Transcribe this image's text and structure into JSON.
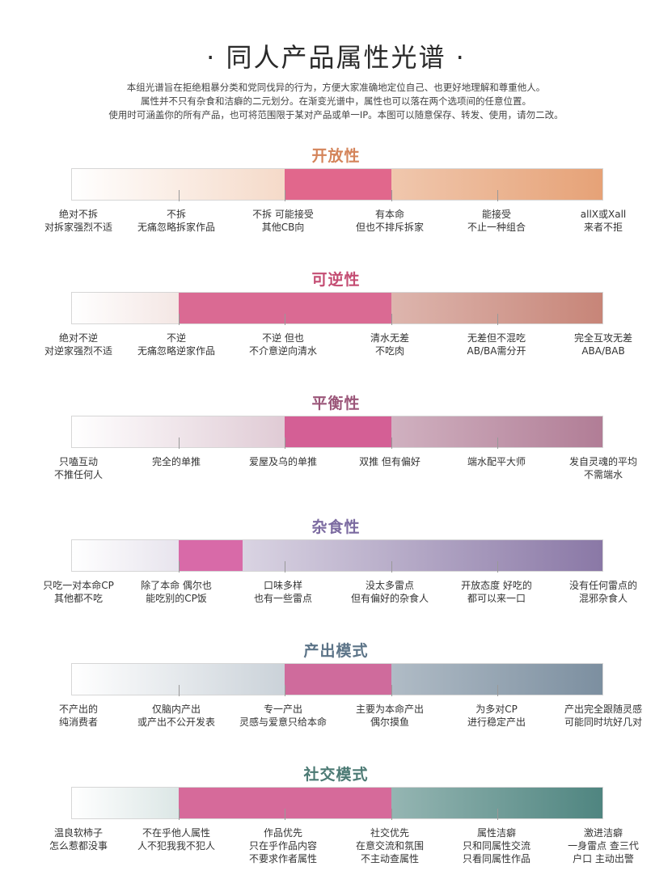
{
  "title": "· 同人产品属性光谱 ·",
  "intro": [
    "本组光谱旨在拒绝粗暴分类和党同伐异的行为，方便大家准确地定位自己、也更好地理解和尊重他人。",
    "属性并不只有杂食和洁癖的二元划分。在渐变光谱中，属性也可以落在两个选项间的任意位置。",
    "使用时可涵盖你的所有产品，也可将范围限于某对产品或单一IP。本图可以随意保存、转发、使用，请勿二改。"
  ],
  "sections": [
    {
      "title": "开放性",
      "color": "#d4845a",
      "gradient_start": "#ffffff",
      "gradient_end": "#e6a277",
      "highlight_color": "#e1678c",
      "highlight_range": [
        2,
        3
      ],
      "labels": [
        [
          "绝对不拆",
          "对拆家强烈不适"
        ],
        [
          "不拆",
          "无痛忽略拆家作品"
        ],
        [
          "不拆 可能接受",
          "其他CB向"
        ],
        [
          "有本命",
          "但也不排斥拆家"
        ],
        [
          "能接受",
          "不止一种组合"
        ],
        [
          "allX或Xall",
          "来者不拒"
        ]
      ]
    },
    {
      "title": "可逆性",
      "color": "#c44d73",
      "gradient_start": "#ffffff",
      "gradient_end": "#c78578",
      "highlight_color": "#da6a93",
      "highlight_range": [
        1,
        3
      ],
      "labels": [
        [
          "绝对不逆",
          "对逆家强烈不适"
        ],
        [
          "不逆",
          "无痛忽略逆家作品"
        ],
        [
          "不逆 但也",
          "不介意逆向清水"
        ],
        [
          "清水无差",
          "不吃肉"
        ],
        [
          "无差但不混吃",
          "AB/BA需分开"
        ],
        [
          "完全互攻无差",
          "ABA/BAB"
        ]
      ]
    },
    {
      "title": "平衡性",
      "color": "#9b5679",
      "gradient_start": "#ffffff",
      "gradient_end": "#b17d96",
      "highlight_color": "#d45f95",
      "highlight_range": [
        2,
        3
      ],
      "labels": [
        [
          "只嗑互动",
          "不推任何人"
        ],
        [
          "完全的单推"
        ],
        [
          "爱屋及乌的单推"
        ],
        [
          "双推 但有偏好"
        ],
        [
          "端水配平大师"
        ],
        [
          "发自灵魂的平均",
          "不需端水"
        ]
      ]
    },
    {
      "title": "杂食性",
      "color": "#7b6aa0",
      "gradient_start": "#ffffff",
      "gradient_end": "#8a78a6",
      "highlight_color": "#d86aa8",
      "highlight_range": [
        1,
        1.6
      ],
      "labels": [
        [
          "只吃一对本命CP",
          "其他都不吃"
        ],
        [
          "除了本命 偶尔也",
          "能吃别的CP饭"
        ],
        [
          "口味多样",
          "也有一些雷点"
        ],
        [
          "没太多雷点",
          "但有偏好的杂食人"
        ],
        [
          "开放态度 好吃的",
          "都可以来一口"
        ],
        [
          "没有任何雷点的",
          "混邪杂食人"
        ]
      ]
    },
    {
      "title": "产出模式",
      "color": "#5c7488",
      "gradient_start": "#ffffff",
      "gradient_end": "#7c8fa0",
      "highlight_color": "#cf6b9c",
      "highlight_range": [
        2,
        3
      ],
      "labels": [
        [
          "不产出的",
          "纯消费者"
        ],
        [
          "仅脑内产出",
          "或产出不公开发表"
        ],
        [
          "专一产出",
          "灵感与爱意只给本命"
        ],
        [
          "主要为本命产出",
          "偶尔摸鱼"
        ],
        [
          "为多对CP",
          "进行稳定产出"
        ],
        [
          "产出完全跟随灵感",
          "可能同时坑好几对"
        ]
      ]
    },
    {
      "title": "社交模式",
      "color": "#4c7a74",
      "gradient_start": "#ffffff",
      "gradient_end": "#4f8580",
      "highlight_color": "#d66a9a",
      "highlight_range": [
        1,
        3
      ],
      "labels": [
        [
          "温良软柿子",
          "怎么惹都没事"
        ],
        [
          "不在乎他人属性",
          "人不犯我我不犯人"
        ],
        [
          "作品优先",
          "只在乎作品内容",
          "不要求作者属性"
        ],
        [
          "社交优先",
          "在意交流和氛围",
          "不主动查属性"
        ],
        [
          "属性洁癖",
          "只和同属性交流",
          "只看同属性作品"
        ],
        [
          "激进洁癖",
          "一身雷点 查三代",
          "户口 主动出警"
        ]
      ]
    }
  ]
}
